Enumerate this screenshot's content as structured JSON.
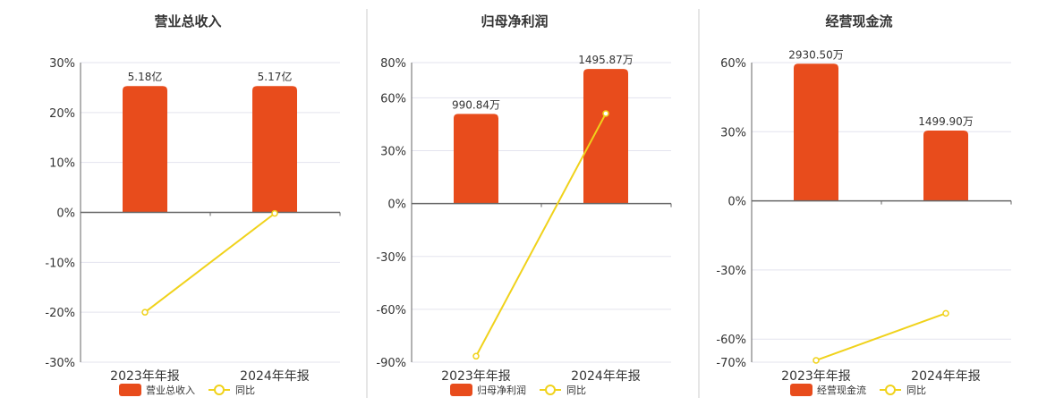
{
  "colors": {
    "bar": "#E84C1C",
    "line": "#F0D21B",
    "axis": "#666666",
    "grid": "#E3E3EE",
    "text": "#333333",
    "divider": "#CCCCCC"
  },
  "legend": {
    "yoy_label": "同比"
  },
  "chart_data": [
    {
      "type": "bar",
      "title": "营业总收入",
      "categories": [
        "2023年年报",
        "2024年年报"
      ],
      "series": [
        {
          "name": "营业总收入",
          "type": "bar",
          "values": [
            25.3,
            25.3
          ],
          "labels": [
            "5.18亿",
            "5.17亿"
          ]
        },
        {
          "name": "同比",
          "type": "line",
          "values": [
            -20,
            -0.2
          ]
        }
      ],
      "yticks": [
        "30%",
        "20%",
        "10%",
        "0%",
        "-10%",
        "-20%",
        "-30%"
      ],
      "ylim": [
        -30,
        30
      ],
      "grid": true
    },
    {
      "type": "bar",
      "title": "归母净利润",
      "categories": [
        "2023年年报",
        "2024年年报"
      ],
      "series": [
        {
          "name": "归母净利润",
          "type": "bar",
          "values": [
            50.9,
            76.4
          ],
          "labels": [
            "990.84万",
            "1495.87万"
          ]
        },
        {
          "name": "同比",
          "type": "line",
          "values": [
            -86.6,
            51.1
          ]
        }
      ],
      "yticks": [
        "80%",
        "60%",
        "30%",
        "0%",
        "-30%",
        "-60%",
        "-90%"
      ],
      "ylim": [
        -90,
        80
      ],
      "grid": true
    },
    {
      "type": "bar",
      "title": "经营现金流",
      "categories": [
        "2023年年报",
        "2024年年报"
      ],
      "series": [
        {
          "name": "经营现金流",
          "type": "bar",
          "values": [
            59.5,
            30.5
          ],
          "labels": [
            "2930.50万",
            "1499.90万"
          ]
        },
        {
          "name": "同比",
          "type": "line",
          "values": [
            -69.2,
            -48.8
          ]
        }
      ],
      "yticks": [
        "60%",
        "30%",
        "0%",
        "-30%",
        "-60%",
        "-70%"
      ],
      "ylim": [
        -70,
        60
      ],
      "grid": true
    }
  ]
}
